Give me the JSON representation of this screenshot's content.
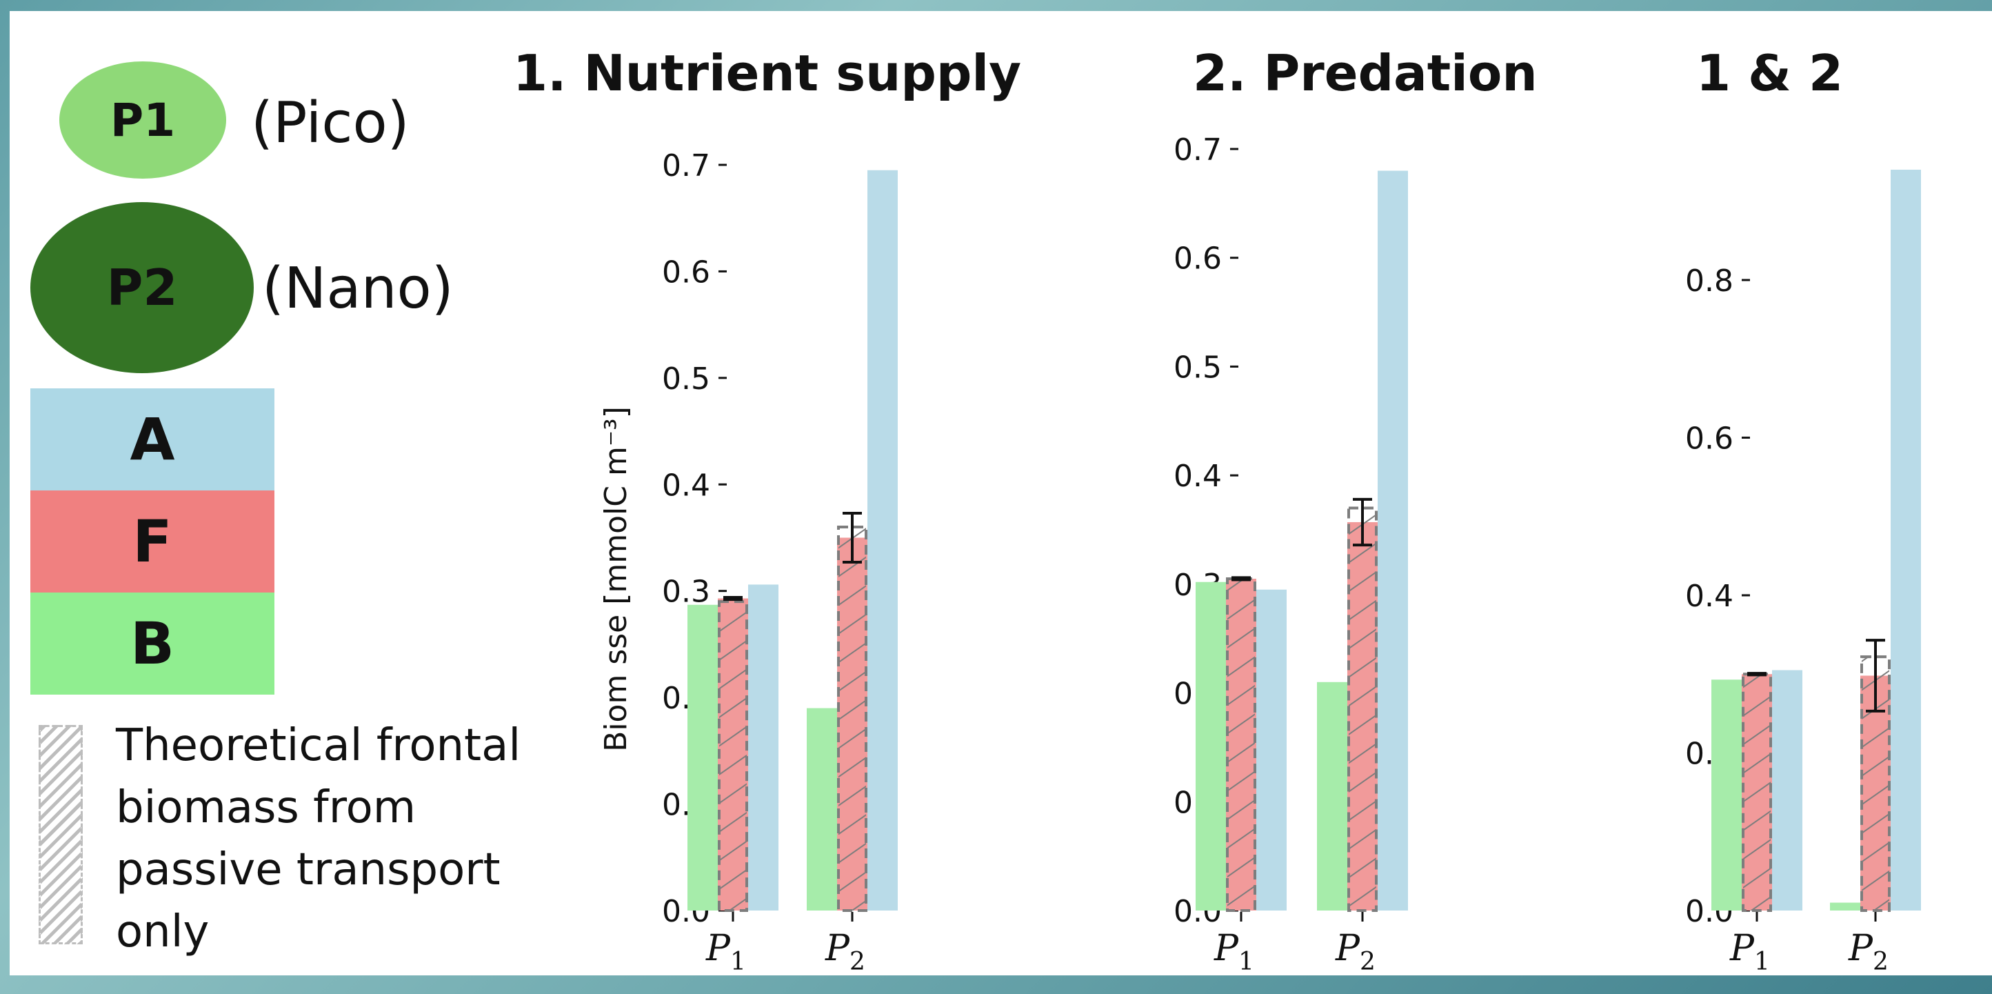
{
  "legend": {
    "p1": {
      "label": "P1",
      "name": "(Pico)",
      "color": "#8fd978"
    },
    "p2": {
      "label": "P2",
      "name": "(Nano)",
      "color": "#347425"
    },
    "a": {
      "label": "A",
      "color": "#add8e6"
    },
    "f": {
      "label": "F",
      "color": "#f08080"
    },
    "b": {
      "label": "B",
      "color": "#90ee90"
    },
    "hatch_note": [
      "Theoretical frontal",
      "biomass from",
      "passive transport",
      "only"
    ]
  },
  "panel_titles": [
    "1. Nutrient supply",
    "2. Predation",
    "1 & 2"
  ],
  "colors": {
    "B": "#a6ecaa",
    "F": "#f19a9a",
    "A": "#b9dbe8",
    "hatch": "#7d7d7d",
    "err": "#111111"
  },
  "chart_data": [
    {
      "type": "bar",
      "title": "1. Nutrient supply",
      "ylabel": "Biom  sse [mmolC m⁻³]",
      "categories": [
        "P1",
        "P2"
      ],
      "ylim": [
        0,
        0.7
      ],
      "yticks": [
        0.0,
        0.1,
        0.2,
        0.3,
        0.4,
        0.5,
        0.6,
        0.7
      ],
      "ytick_labels": [
        "0.0",
        "0.1",
        "0.2",
        "0.3",
        "0.4",
        "0.5",
        "0.6",
        "0.7"
      ],
      "series": [
        {
          "name": "B",
          "values": [
            0.287,
            0.19
          ]
        },
        {
          "name": "F",
          "values": [
            0.293,
            0.35
          ],
          "err": [
            0.001,
            0.023
          ]
        },
        {
          "name": "A",
          "values": [
            0.306,
            0.695
          ]
        }
      ],
      "theoretical_frontal": [
        0.29,
        0.36
      ]
    },
    {
      "type": "bar",
      "title": "2. Predation",
      "ylabel": "",
      "categories": [
        "P1",
        "P2"
      ],
      "ylim": [
        0,
        0.7
      ],
      "yticks": [
        0.0,
        0.1,
        0.2,
        0.3,
        0.4,
        0.5,
        0.6,
        0.7
      ],
      "ytick_labels": [
        "0.0",
        "0.1",
        "0.2",
        "0.3",
        "0.4",
        "0.5",
        "0.6",
        "0.7"
      ],
      "series": [
        {
          "name": "B",
          "values": [
            0.302,
            0.21
          ]
        },
        {
          "name": "F",
          "values": [
            0.305,
            0.357
          ],
          "err": [
            0.001,
            0.021
          ]
        },
        {
          "name": "A",
          "values": [
            0.295,
            0.68
          ]
        }
      ],
      "theoretical_frontal": [
        0.305,
        0.37
      ]
    },
    {
      "type": "bar",
      "title": "1 & 2",
      "ylabel": "",
      "categories": [
        "P1",
        "P2"
      ],
      "ylim": [
        0,
        0.94
      ],
      "yticks": [
        0.0,
        0.2,
        0.4,
        0.6,
        0.8
      ],
      "ytick_labels": [
        "0.0",
        "0.2",
        "0.4",
        "0.6",
        "0.8"
      ],
      "series": [
        {
          "name": "B",
          "values": [
            0.293,
            0.01
          ]
        },
        {
          "name": "F",
          "values": [
            0.3,
            0.298
          ],
          "err": [
            0.001,
            0.045
          ]
        },
        {
          "name": "A",
          "values": [
            0.305,
            0.94
          ]
        }
      ],
      "theoretical_frontal": [
        0.3,
        0.322
      ]
    }
  ]
}
